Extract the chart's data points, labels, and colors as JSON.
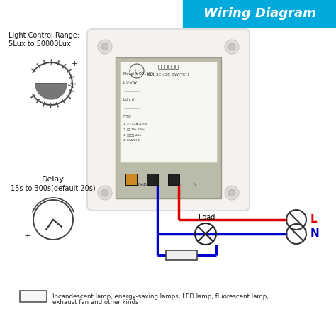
{
  "title": "Wiring Diagram",
  "title_bg": "#00AADD",
  "title_color": "white",
  "light_control_label1": "Light Control Range:",
  "light_control_label2": "5Lux to 50000Lux",
  "delay_label1": "Delay",
  "delay_label2": "15s to 300s(default 20s)",
  "legend_label1": "Incandescent lamp, energy-saving lamps, LED lamp, fluorescent lamp,",
  "legend_label2": "exhaust fan and other kinds",
  "L_label": "L",
  "N_label": "N",
  "Load_label": "Load",
  "wire_red": "#DD0000",
  "wire_blue": "#0000CC",
  "bg_color": "#FFFFFF",
  "text_color": "#000000",
  "plate_color": "#F5F2EE",
  "plate_edge": "#DDDDDD",
  "module_color": "#CCCCBB",
  "module_edge": "#AAAAAA",
  "label_bg": "#EEEEDD",
  "screw_color": "#DDDDCC"
}
